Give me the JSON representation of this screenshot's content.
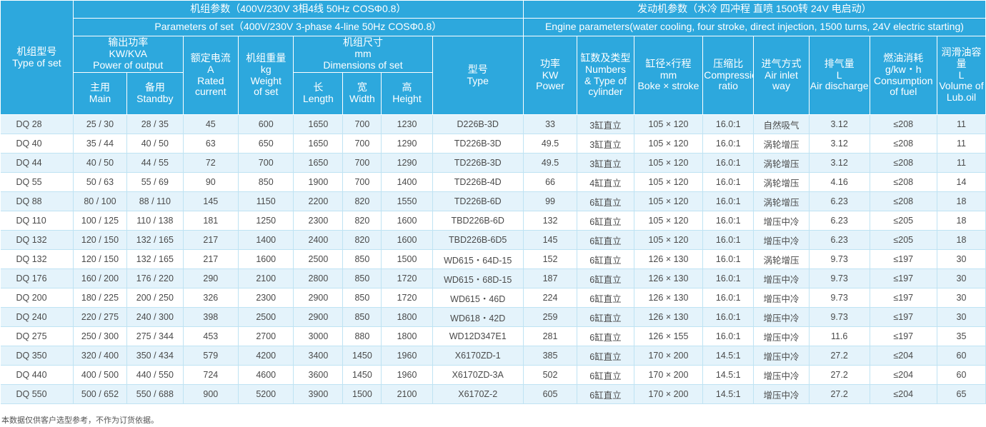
{
  "header": {
    "set_type": {
      "cn": "机组型号",
      "en": "Type of set"
    },
    "set_params": {
      "cn": "机组参数（400V/230V  3相4线  50Hz  COSΦ0.8）",
      "en": "Parameters of set（400V/230V  3-phase 4-line 50Hz  COSΦ0.8）"
    },
    "engine_params": {
      "cn": "发动机参数（水冷 四冲程 直喷 1500转 24V 电启动）",
      "en": "Engine parameters(water cooling, four stroke, direct injection, 1500 turns, 24V electric starting)"
    },
    "power_output": {
      "cn": "输出功率",
      "unit": "KW/KVA",
      "en": "Power of output"
    },
    "main": {
      "cn": "主用",
      "en": "Main"
    },
    "standby": {
      "cn": "备用",
      "en": "Standby"
    },
    "rated_current": {
      "cn": "额定电流",
      "unit": "A",
      "en1": "Rated",
      "en2": "current"
    },
    "weight": {
      "cn": "机组重量",
      "unit": "kg",
      "en1": "Weight",
      "en2": "of set"
    },
    "dimensions": {
      "cn": "机组尺寸",
      "unit": "mm",
      "en": "Dimensions of set"
    },
    "length": {
      "cn": "长",
      "en": "Length"
    },
    "width": {
      "cn": "宽",
      "en": "Width"
    },
    "height": {
      "cn": "高",
      "en": "Height"
    },
    "model": {
      "cn": "型号",
      "en": "Type"
    },
    "power": {
      "cn": "功率",
      "unit": "KW",
      "en": "Power"
    },
    "cylinders": {
      "cn": "缸数及类型",
      "en1": "Numbers",
      "en2": "& Type of",
      "en3": "cylinder"
    },
    "bore_stroke": {
      "cn": "缸径×行程",
      "unit": "mm",
      "en": "Boke × stroke"
    },
    "compression": {
      "cn": "压缩比",
      "en1": "Compression",
      "en2": "ratio"
    },
    "air_inlet": {
      "cn": "进气方式",
      "en": "Air inlet way"
    },
    "air_discharge": {
      "cn": "排气量",
      "unit": "L",
      "en": "Air discharge"
    },
    "fuel": {
      "cn": "燃油消耗",
      "unit": "g/kw・h",
      "en1": "Consumption",
      "en2": "of fuel"
    },
    "lube": {
      "cn": "润滑油容量",
      "unit": "L",
      "en1": "Volume of",
      "en2": "Lub.oil"
    }
  },
  "rows": [
    [
      "DQ   28",
      "25 / 30",
      "28 / 35",
      "45",
      "600",
      "1650",
      "700",
      "1230",
      "D226B-3D",
      "33",
      "3缸直立",
      "105 × 120",
      "16.0:1",
      "自然吸气",
      "3.12",
      "≤208",
      "11"
    ],
    [
      "DQ   40",
      "35 / 44",
      "40 / 50",
      "63",
      "650",
      "1650",
      "700",
      "1290",
      "TD226B-3D",
      "49.5",
      "3缸直立",
      "105 × 120",
      "16.0:1",
      "涡轮增压",
      "3.12",
      "≤208",
      "11"
    ],
    [
      "DQ   44",
      "40 / 50",
      "44 / 55",
      "72",
      "700",
      "1650",
      "700",
      "1290",
      "TD226B-3D",
      "49.5",
      "3缸直立",
      "105 × 120",
      "16.0:1",
      "涡轮增压",
      "3.12",
      "≤208",
      "11"
    ],
    [
      "DQ   55",
      "50 / 63",
      "55 / 69",
      "90",
      "850",
      "1900",
      "700",
      "1400",
      "TD226B-4D",
      "66",
      "4缸直立",
      "105 × 120",
      "16.0:1",
      "涡轮增压",
      "4.16",
      "≤208",
      "14"
    ],
    [
      "DQ   88",
      "80 / 100",
      "88 / 110",
      "145",
      "1150",
      "2200",
      "820",
      "1550",
      "TD226B-6D",
      "99",
      "6缸直立",
      "105 × 120",
      "16.0:1",
      "涡轮增压",
      "6.23",
      "≤208",
      "18"
    ],
    [
      "DQ  110",
      "100 / 125",
      "110 / 138",
      "181",
      "1250",
      "2300",
      "820",
      "1600",
      "TBD226B-6D",
      "132",
      "6缸直立",
      "105 × 120",
      "16.0:1",
      "增压中冷",
      "6.23",
      "≤205",
      "18"
    ],
    [
      "DQ  132",
      "120 / 150",
      "132 / 165",
      "217",
      "1400",
      "2400",
      "820",
      "1600",
      "TBD226B-6D5",
      "145",
      "6缸直立",
      "105 × 120",
      "16.0:1",
      "增压中冷",
      "6.23",
      "≤205",
      "18"
    ],
    [
      "DQ  132",
      "120 / 150",
      "132 / 165",
      "217",
      "1600",
      "2500",
      "850",
      "1500",
      "WD615・64D-15",
      "152",
      "6缸直立",
      "126 × 130",
      "16.0:1",
      "涡轮增压",
      "9.73",
      "≤197",
      "30"
    ],
    [
      "DQ  176",
      "160 / 200",
      "176 / 220",
      "290",
      "2100",
      "2800",
      "850",
      "1720",
      "WD615・68D-15",
      "187",
      "6缸直立",
      "126 × 130",
      "16.0:1",
      "增压中冷",
      "9.73",
      "≤197",
      "30"
    ],
    [
      "DQ  200",
      "180 / 225",
      "200 / 250",
      "326",
      "2300",
      "2900",
      "850",
      "1720",
      "WD615・46D",
      "224",
      "6缸直立",
      "126 × 130",
      "16.0:1",
      "增压中冷",
      "9.73",
      "≤197",
      "30"
    ],
    [
      "DQ  240",
      "220 / 275",
      "240 / 300",
      "398",
      "2500",
      "2900",
      "850",
      "1800",
      "WD618・42D",
      "259",
      "6缸直立",
      "126 × 130",
      "16.0:1",
      "增压中冷",
      "9.73",
      "≤197",
      "30"
    ],
    [
      "DQ  275",
      "250 / 300",
      "275 / 344",
      "453",
      "2700",
      "3000",
      "880",
      "1800",
      "WD12D347E1",
      "281",
      "6缸直立",
      "126 × 155",
      "16.0:1",
      "增压中冷",
      "11.6",
      "≤197",
      "35"
    ],
    [
      "DQ  350",
      "320 / 400",
      "350 / 434",
      "579",
      "4200",
      "3400",
      "1450",
      "1960",
      "X6170ZD-1",
      "385",
      "6缸直立",
      "170 × 200",
      "14.5:1",
      "增压中冷",
      "27.2",
      "≤204",
      "60"
    ],
    [
      "DQ  440",
      "400 / 500",
      "440 / 550",
      "724",
      "4600",
      "3600",
      "1450",
      "1960",
      "X6170ZD-3A",
      "502",
      "6缸直立",
      "170 × 200",
      "14.5:1",
      "增压中冷",
      "27.2",
      "≤204",
      "60"
    ],
    [
      "DQ  550",
      "500 / 652",
      "550 / 688",
      "900",
      "5200",
      "3900",
      "1500",
      "2100",
      "X6170Z-2",
      "605",
      "6缸直立",
      "170 × 200",
      "14.5:1",
      "增压中冷",
      "27.2",
      "≤204",
      "65"
    ]
  ],
  "footnote": "本数据仅供客户选型参考，不作为订货依据。"
}
